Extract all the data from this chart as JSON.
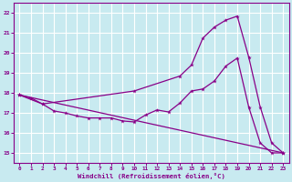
{
  "xlabel": "Windchill (Refroidissement éolien,°C)",
  "bg_color": "#c8eaf0",
  "grid_color": "#b0d8e0",
  "line_color": "#880088",
  "xlim": [
    -0.5,
    23.5
  ],
  "ylim": [
    14.5,
    22.5
  ],
  "yticks": [
    15,
    16,
    17,
    18,
    19,
    20,
    21,
    22
  ],
  "xticks": [
    0,
    1,
    2,
    3,
    4,
    5,
    6,
    7,
    8,
    9,
    10,
    11,
    12,
    13,
    14,
    15,
    16,
    17,
    18,
    19,
    20,
    21,
    22,
    23
  ],
  "line1_x": [
    0,
    23
  ],
  "line1_y": [
    17.9,
    15.0
  ],
  "line2_x": [
    0,
    1,
    2,
    3,
    4,
    5,
    6,
    7,
    8,
    9,
    10,
    11,
    12,
    13,
    14,
    15,
    16,
    17,
    18,
    19,
    20,
    21,
    22,
    23
  ],
  "line2_y": [
    17.9,
    17.75,
    17.45,
    17.1,
    17.0,
    16.85,
    16.75,
    16.75,
    16.75,
    16.6,
    16.55,
    16.9,
    17.15,
    17.05,
    17.5,
    18.1,
    18.2,
    18.6,
    19.35,
    19.75,
    17.3,
    15.5,
    15.0,
    15.0
  ],
  "line3_x": [
    0,
    2,
    10,
    14,
    15,
    16,
    17,
    18,
    19,
    20,
    21,
    22,
    23
  ],
  "line3_y": [
    17.9,
    17.45,
    18.1,
    18.85,
    19.4,
    20.75,
    21.3,
    21.65,
    21.85,
    19.8,
    17.3,
    15.5,
    15.0
  ]
}
